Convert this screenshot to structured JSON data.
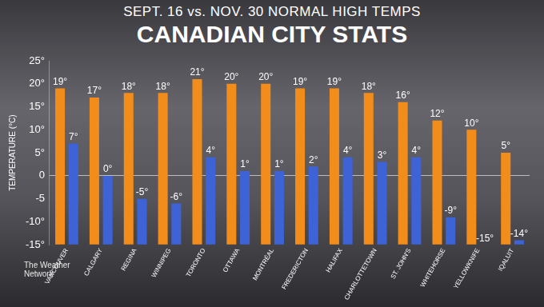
{
  "chart_data": {
    "type": "bar",
    "subtitle": "SEPT. 16 vs. NOV. 30 NORMAL HIGH TEMPS",
    "title": "CANADIAN CITY STATS",
    "y_label": "TEMPERATURE (°C)",
    "source": "The Weather Network",
    "categories": [
      "VANCOUVER",
      "CALGARY",
      "REGINA",
      "WINNIPEG",
      "TORONTO",
      "OTTAWA",
      "MONTRÉAL",
      "FREDERICTON",
      "HALIFAX",
      "CHARLOTTETOWN",
      "ST. JOHN'S",
      "WHITEHORSE",
      "YELLOWKNIFE",
      "IQALUIT"
    ],
    "series": [
      {
        "name": "SEPT. 16",
        "color": "#f28c1a",
        "values": [
          19,
          17,
          18,
          18,
          21,
          20,
          20,
          19,
          19,
          18,
          16,
          12,
          10,
          5
        ],
        "value_labels": [
          "19°",
          "17°",
          "18°",
          "18°",
          "21°",
          "20°",
          "20°",
          "19°",
          "19°",
          "18°",
          "16°",
          "12°",
          "10°",
          "5°"
        ]
      },
      {
        "name": "NOV. 30",
        "color": "#3d63d6",
        "values": [
          7,
          0,
          -5,
          -6,
          4,
          1,
          1,
          2,
          4,
          3,
          4,
          -9,
          -15,
          -14
        ],
        "value_labels": [
          "7°",
          "0°",
          "-5°",
          "-6°",
          "4°",
          "1°",
          "1°",
          "2°",
          "4°",
          "3°",
          "4°",
          "-9°",
          "-15°",
          "-14°"
        ]
      }
    ],
    "ylim": [
      -15,
      25
    ],
    "yticks": [
      {
        "value": -15,
        "label": "-15°"
      },
      {
        "value": -10,
        "label": "-10°"
      },
      -5,
      0,
      {
        "value": 5,
        "label": "5°"
      },
      {
        "value": 10,
        "label": "10°"
      },
      {
        "value": 15,
        "label": "15°"
      },
      {
        "value": 20,
        "label": "20°"
      },
      {
        "value": 25,
        "label": "25°"
      }
    ],
    "grid": false,
    "data_labels": true
  }
}
